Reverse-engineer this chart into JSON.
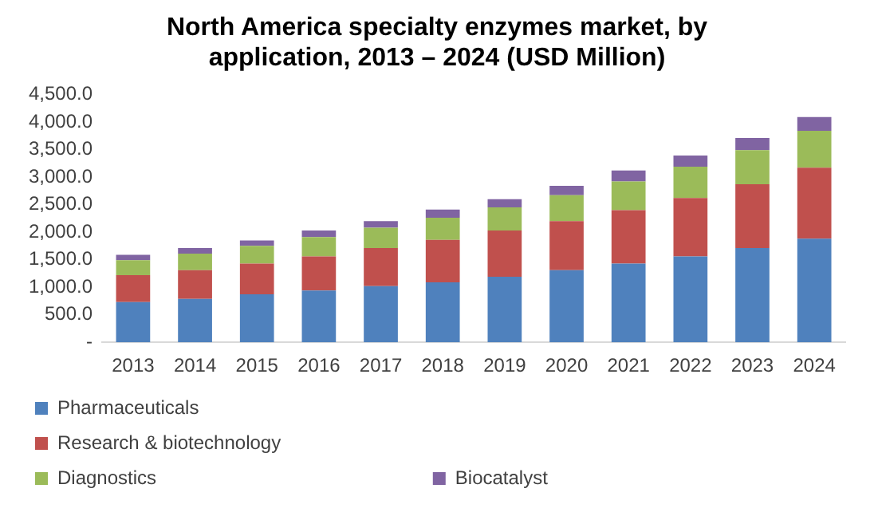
{
  "chart_data": {
    "type": "bar",
    "title": "North America specialty enzymes market, by application, 2013 – 2024 (USD Million)",
    "stacked": true,
    "categories": [
      "2013",
      "2014",
      "2015",
      "2016",
      "2017",
      "2018",
      "2019",
      "2020",
      "2021",
      "2022",
      "2023",
      "2024"
    ],
    "series": [
      {
        "name": "Pharmaceuticals",
        "color": "#4f81bd",
        "values": [
          730,
          790,
          870,
          940,
          1020,
          1090,
          1190,
          1310,
          1430,
          1560,
          1710,
          1880
        ]
      },
      {
        "name": "Research & biotechnology",
        "color": "#c0504d",
        "values": [
          490,
          520,
          560,
          620,
          690,
          770,
          840,
          890,
          970,
          1060,
          1160,
          1290
        ]
      },
      {
        "name": "Diagnostics",
        "color": "#9bbb59",
        "values": [
          270,
          300,
          320,
          350,
          370,
          400,
          420,
          470,
          520,
          570,
          620,
          670
        ]
      },
      {
        "name": "Biocatalyst",
        "color": "#8064a2",
        "values": [
          100,
          100,
          100,
          120,
          120,
          150,
          150,
          170,
          200,
          200,
          220,
          250
        ]
      }
    ],
    "ylim": [
      0,
      4500
    ],
    "yticks": [
      {
        "value": 0,
        "label": "-"
      },
      {
        "value": 500,
        "label": "500.0"
      },
      {
        "value": 1000,
        "label": "1,000.0"
      },
      {
        "value": 1500,
        "label": "1,500.0"
      },
      {
        "value": 2000,
        "label": "2,000.0"
      },
      {
        "value": 2500,
        "label": "2,500.0"
      },
      {
        "value": 3000,
        "label": "3,000.0"
      },
      {
        "value": 3500,
        "label": "3,500.0"
      },
      {
        "value": 4000,
        "label": "4,000.0"
      },
      {
        "value": 4500,
        "label": "4,500.0"
      }
    ],
    "grid": false,
    "legend": "bottom"
  }
}
